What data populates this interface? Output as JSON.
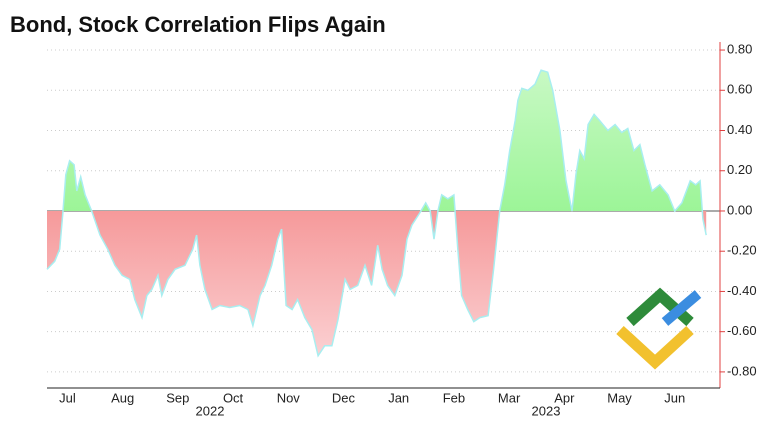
{
  "chart_data": {
    "type": "area",
    "title": "Bond, Stock Correlation Flips Again",
    "x": [
      0.13,
      0.27,
      0.36,
      0.42,
      0.47,
      0.54,
      0.62,
      0.67,
      0.74,
      0.82,
      0.94,
      1.09,
      1.23,
      1.36,
      1.49,
      1.63,
      1.72,
      1.85,
      1.94,
      2.03,
      2.14,
      2.21,
      2.32,
      2.45,
      2.63,
      2.77,
      2.84,
      2.9,
      2.99,
      3.12,
      3.26,
      3.44,
      3.62,
      3.77,
      3.86,
      3.99,
      4.08,
      4.2,
      4.31,
      4.38,
      4.46,
      4.57,
      4.67,
      4.8,
      4.93,
      5.04,
      5.16,
      5.29,
      5.4,
      5.53,
      5.62,
      5.76,
      5.89,
      6.01,
      6.12,
      6.2,
      6.3,
      6.43,
      6.56,
      6.65,
      6.74,
      6.88,
      6.99,
      7.07,
      7.14,
      7.21,
      7.28,
      7.39,
      7.5,
      7.57,
      7.64,
      7.75,
      7.86,
      7.97,
      8.12,
      8.22,
      8.33,
      8.42,
      8.51,
      8.61,
      8.66,
      8.73,
      8.84,
      8.97,
      9.08,
      9.2,
      9.29,
      9.42,
      9.53,
      9.64,
      9.71,
      9.78,
      9.86,
      9.93,
      10.04,
      10.14,
      10.29,
      10.42,
      10.54,
      10.65,
      10.76,
      10.87,
      10.96,
      11.09,
      11.23,
      11.38,
      11.5,
      11.63,
      11.78,
      11.88,
      11.96,
      12.01,
      12.07
    ],
    "values": [
      -0.29,
      -0.25,
      -0.19,
      0,
      0.18,
      0.25,
      0.23,
      0.1,
      0.17,
      0.08,
      0,
      -0.12,
      -0.19,
      -0.27,
      -0.32,
      -0.34,
      -0.44,
      -0.53,
      -0.42,
      -0.39,
      -0.32,
      -0.42,
      -0.34,
      -0.29,
      -0.27,
      -0.19,
      -0.12,
      -0.27,
      -0.39,
      -0.49,
      -0.47,
      -0.48,
      -0.47,
      -0.49,
      -0.57,
      -0.42,
      -0.37,
      -0.27,
      -0.14,
      -0.09,
      -0.47,
      -0.49,
      -0.44,
      -0.53,
      -0.59,
      -0.72,
      -0.67,
      -0.67,
      -0.54,
      -0.34,
      -0.39,
      -0.37,
      -0.27,
      -0.37,
      -0.17,
      -0.29,
      -0.37,
      -0.42,
      -0.32,
      -0.14,
      -0.07,
      -0.01,
      0.04,
      0,
      -0.14,
      0,
      0.08,
      0.06,
      0.08,
      -0.19,
      -0.42,
      -0.49,
      -0.55,
      -0.53,
      -0.52,
      -0.29,
      0,
      0.13,
      0.3,
      0.45,
      0.55,
      0.61,
      0.6,
      0.63,
      0.7,
      0.69,
      0.6,
      0.4,
      0.15,
      0,
      0.18,
      0.3,
      0.26,
      0.43,
      0.48,
      0.45,
      0.4,
      0.43,
      0.39,
      0.41,
      0.3,
      0.33,
      0.23,
      0.1,
      0.13,
      0.08,
      0,
      0.04,
      0.15,
      0.13,
      0.15,
      -0.04,
      -0.12
    ],
    "positive_color": "#6ff06a",
    "negative_color": "#f06464",
    "line_color": "#a8eef0",
    "xlim": [
      0.13,
      12.32
    ],
    "xticks": [
      {
        "value": 0.5,
        "label": "Jul"
      },
      {
        "value": 1.5,
        "label": "Aug"
      },
      {
        "value": 2.5,
        "label": "Sep"
      },
      {
        "value": 3.5,
        "label": "Oct"
      },
      {
        "value": 4.5,
        "label": "Nov"
      },
      {
        "value": 5.5,
        "label": "Dec"
      },
      {
        "value": 6.5,
        "label": "Jan"
      },
      {
        "value": 7.5,
        "label": "Feb"
      },
      {
        "value": 8.5,
        "label": "Mar"
      },
      {
        "value": 9.5,
        "label": "Apr"
      },
      {
        "value": 10.5,
        "label": "May"
      },
      {
        "value": 11.5,
        "label": "Jun"
      }
    ],
    "year_labels": [
      "2022",
      "2023"
    ],
    "ylim": [
      -0.88,
      0.84
    ],
    "yticks": [
      {
        "value": 0.8,
        "label": "0.80"
      },
      {
        "value": 0.6,
        "label": "0.60"
      },
      {
        "value": 0.4,
        "label": "0.40"
      },
      {
        "value": 0.2,
        "label": "0.20"
      },
      {
        "value": 0,
        "label": "0.00"
      },
      {
        "value": -0.2,
        "label": "-0.20"
      },
      {
        "value": -0.4,
        "label": "-0.40"
      },
      {
        "value": -0.6,
        "label": "-0.60"
      },
      {
        "value": -0.8,
        "label": "-0.80"
      }
    ],
    "grid": true,
    "y_axis_side": "right"
  }
}
